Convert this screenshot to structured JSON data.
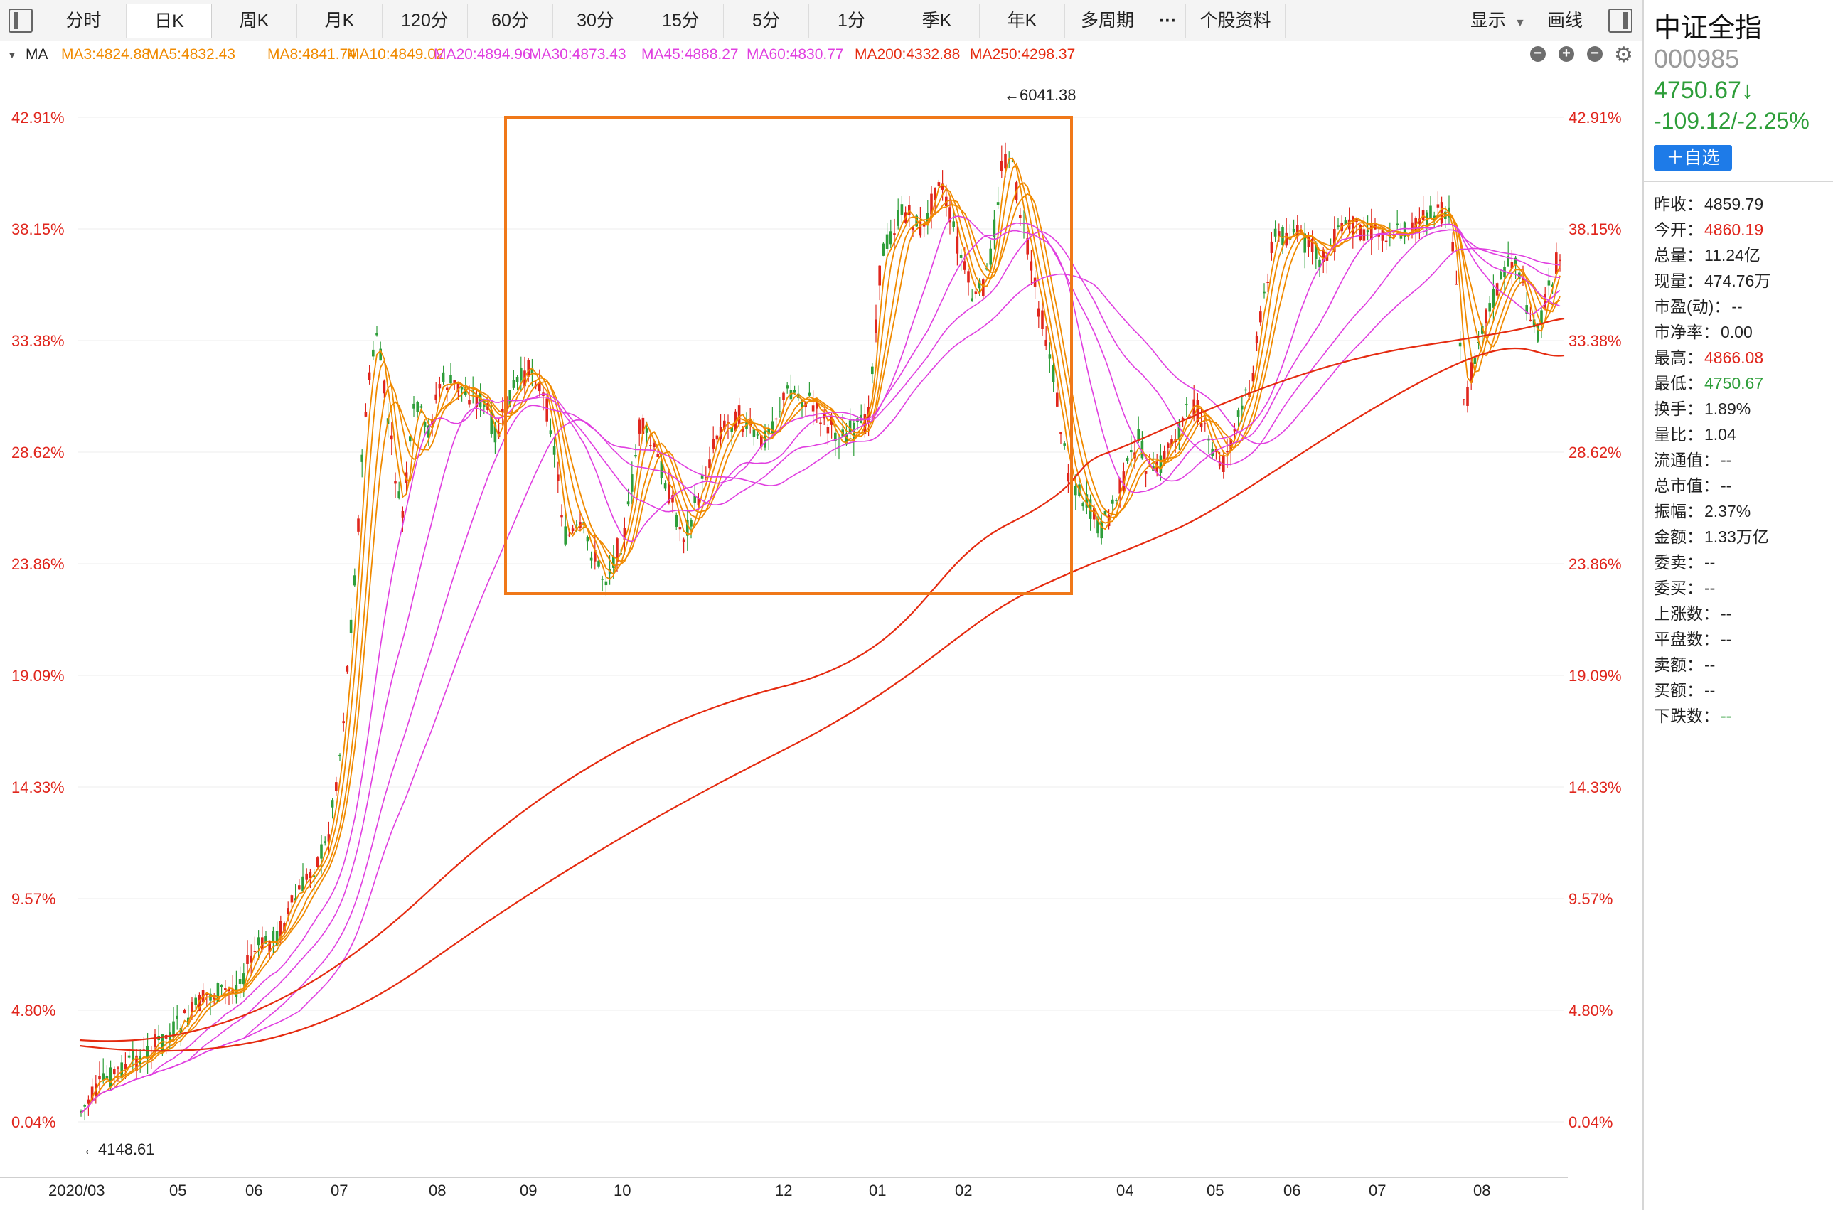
{
  "toolbar": {
    "tabs": [
      "分时",
      "日K",
      "周K",
      "月K",
      "120分",
      "60分",
      "30分",
      "15分",
      "5分",
      "1分",
      "季K",
      "年K",
      "多周期",
      "···",
      "个股资料"
    ],
    "active_tab": "日K",
    "display_label": "显示",
    "draw_label": "画线"
  },
  "ma_bar": {
    "label": "MA",
    "items": [
      {
        "text": "MA3:4824.88",
        "color": "#f08a00"
      },
      {
        "text": "MA5:4832.43",
        "color": "#f08a00"
      },
      {
        "text": "MA8:4841.74",
        "color": "#f08a00"
      },
      {
        "text": "MA10:4849.02",
        "color": "#f08a00"
      },
      {
        "text": "MA20:4894.96",
        "color": "#e03fe0"
      },
      {
        "text": "MA30:4873.43",
        "color": "#e03fe0"
      },
      {
        "text": "MA45:4888.27",
        "color": "#e03fe0"
      },
      {
        "text": "MA60:4830.77",
        "color": "#e03fe0"
      },
      {
        "text": "MA200:4332.88",
        "color": "#e52b10"
      },
      {
        "text": "MA250:4298.37",
        "color": "#e52b10"
      }
    ]
  },
  "chart_data": {
    "type": "candlestick",
    "y_axis_labels": [
      "42.91%",
      "38.15%",
      "33.38%",
      "28.62%",
      "23.86%",
      "19.09%",
      "14.33%",
      "9.57%",
      "4.80%",
      "0.04%"
    ],
    "x_axis_labels": [
      "2020/03",
      "05",
      "06",
      "07",
      "08",
      "09",
      "10",
      "12",
      "01",
      "02",
      "04",
      "05",
      "06",
      "07",
      "08"
    ],
    "high_annotation": "←6041.38",
    "low_annotation": "←4148.61",
    "colors": {
      "up": "#e0261d",
      "down": "#2e9e3a",
      "short_ma": "#f08a00",
      "mid_ma": "#e03fe0",
      "long_ma": "#e52b10",
      "box": "#f07818"
    }
  },
  "stock": {
    "name": "中证全指",
    "code": "000985",
    "price": "4750.67↓",
    "change": "-109.12/-2.25%",
    "add_watch": "＋自选"
  },
  "stats": [
    {
      "label": "昨收：",
      "value": "4859.79",
      "color": ""
    },
    {
      "label": "今开：",
      "value": "4860.19",
      "color": "red"
    },
    {
      "label": "总量：",
      "value": "11.24亿",
      "color": ""
    },
    {
      "label": "现量：",
      "value": "474.76万",
      "color": ""
    },
    {
      "label": "市盈(动)：",
      "value": "--",
      "color": ""
    },
    {
      "label": "市净率：",
      "value": "0.00",
      "color": ""
    },
    {
      "label": "最高：",
      "value": "4866.08",
      "color": "red"
    },
    {
      "label": "最低：",
      "value": "4750.67",
      "color": "green"
    },
    {
      "label": "换手：",
      "value": "1.89%",
      "color": ""
    },
    {
      "label": "量比：",
      "value": "1.04",
      "color": ""
    },
    {
      "label": "流通值：",
      "value": "--",
      "color": ""
    },
    {
      "label": "总市值：",
      "value": "--",
      "color": ""
    },
    {
      "label": "振幅：",
      "value": "2.37%",
      "color": ""
    },
    {
      "label": "金额：",
      "value": "1.33万亿",
      "color": ""
    },
    {
      "label": "委卖：",
      "value": "--",
      "color": ""
    },
    {
      "label": "委买：",
      "value": "--",
      "color": ""
    },
    {
      "label": "上涨数：",
      "value": "--",
      "color": ""
    },
    {
      "label": "平盘数：",
      "value": "--",
      "color": ""
    },
    {
      "label": "卖额：",
      "value": "--",
      "color": ""
    },
    {
      "label": "买额：",
      "value": "--",
      "color": ""
    },
    {
      "label": "下跌数：",
      "value": "--",
      "color": "green"
    }
  ]
}
